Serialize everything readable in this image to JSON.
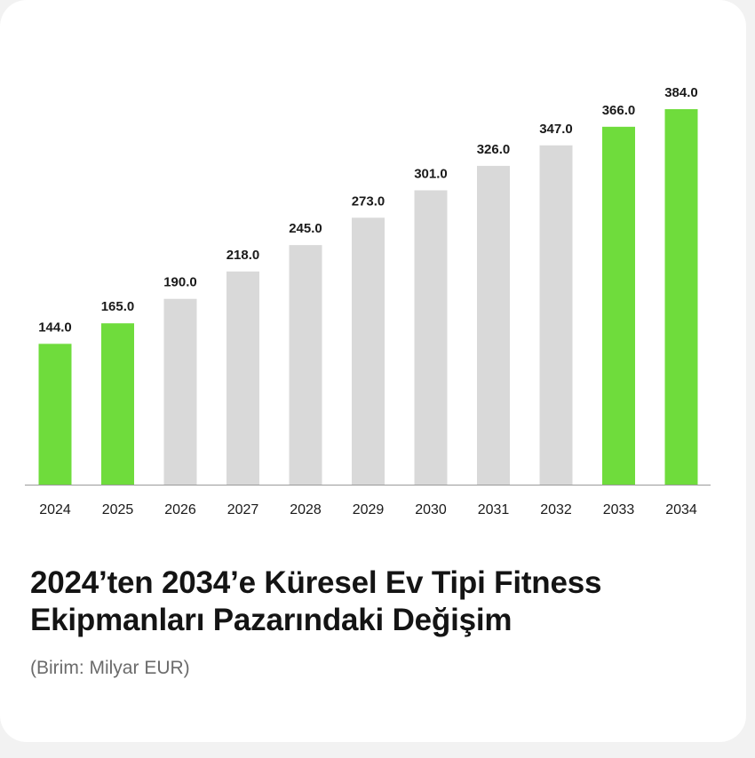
{
  "colors": {
    "highlight": "#6fdc3c",
    "neutral": "#d9d9d9",
    "axis": "#9a9a9a",
    "label": "#1a1a1a"
  },
  "chart_data": {
    "type": "bar",
    "title": "2024’ten 2034’e Küresel Ev Tipi Fitness Ekipmanları Pazarındaki Değişim",
    "subtitle": "(Birim: Milyar EUR)",
    "categories": [
      "2024",
      "2025",
      "2026",
      "2027",
      "2028",
      "2029",
      "2030",
      "2031",
      "2032",
      "2033",
      "2034"
    ],
    "values": [
      144.0,
      165.0,
      190.0,
      218.0,
      245.0,
      273.0,
      301.0,
      326.0,
      347.0,
      366.0,
      384.0
    ],
    "value_labels": [
      "144.0",
      "165.0",
      "190.0",
      "218.0",
      "245.0",
      "273.0",
      "301.0",
      "326.0",
      "347.0",
      "366.0",
      "384.0"
    ],
    "highlighted": [
      true,
      true,
      false,
      false,
      false,
      false,
      false,
      false,
      false,
      true,
      true
    ],
    "ylim": [
      0,
      384
    ],
    "grid": false,
    "xlabel": "",
    "ylabel": ""
  }
}
